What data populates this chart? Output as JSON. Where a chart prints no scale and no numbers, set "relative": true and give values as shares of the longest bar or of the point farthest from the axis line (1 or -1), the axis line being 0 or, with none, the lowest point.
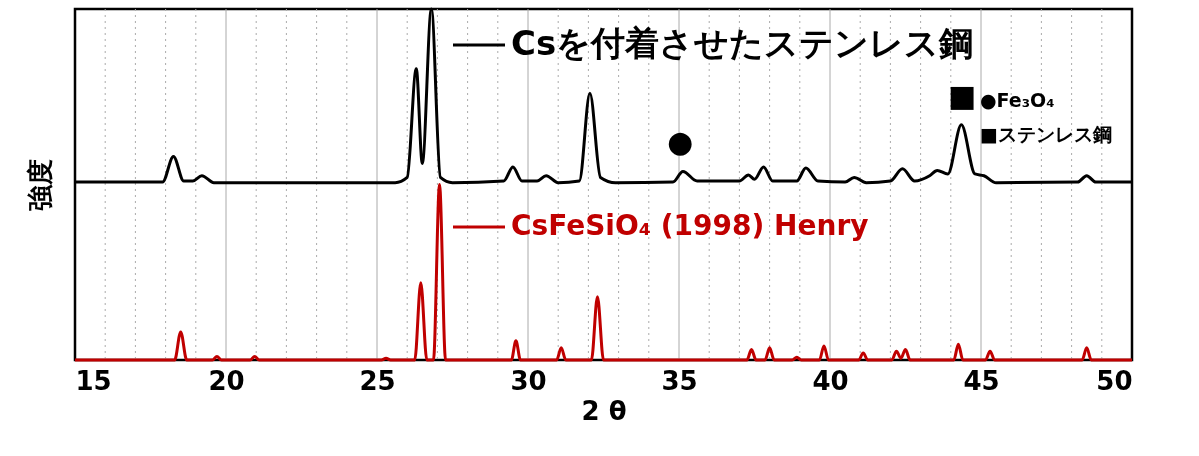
{
  "chart_data": {
    "type": "line",
    "relative": true,
    "xlabel": "2 θ",
    "ylabel": "強度",
    "xlim": [
      15,
      50
    ],
    "xticks": [
      15,
      {
        "value": 16,
        "label": null
      },
      {
        "value": 17,
        "label": null
      },
      {
        "value": 18,
        "label": null
      },
      {
        "value": 19,
        "label": null
      },
      20,
      {
        "value": 21,
        "label": null
      },
      {
        "value": 22,
        "label": null
      },
      {
        "value": 23,
        "label": null
      },
      {
        "value": 24,
        "label": null
      },
      25,
      {
        "value": 26,
        "label": null
      },
      {
        "value": 27,
        "label": null
      },
      {
        "value": 28,
        "label": null
      },
      {
        "value": 29,
        "label": null
      },
      30,
      {
        "value": 31,
        "label": null
      },
      {
        "value": 32,
        "label": null
      },
      {
        "value": 33,
        "label": null
      },
      {
        "value": 34,
        "label": null
      },
      35,
      {
        "value": 36,
        "label": null
      },
      {
        "value": 37,
        "label": null
      },
      {
        "value": 38,
        "label": null
      },
      {
        "value": 39,
        "label": null
      },
      40,
      {
        "value": 41,
        "label": null
      },
      {
        "value": 42,
        "label": null
      },
      {
        "value": 43,
        "label": null
      },
      {
        "value": 44,
        "label": null
      },
      45,
      {
        "value": 46,
        "label": null
      },
      {
        "value": 47,
        "label": null
      },
      {
        "value": 48,
        "label": null
      },
      {
        "value": 49,
        "label": null
      },
      50
    ],
    "grid": "x",
    "line_style": "solid",
    "marker": "none",
    "series": [
      {
        "name": "Csを付着させたステンレス鋼",
        "color": "#000000",
        "x": [
          15,
          17.9,
          18.26,
          18.6,
          18.9,
          19.2,
          19.6,
          25.6,
          26.0,
          26.3,
          26.5,
          26.8,
          27.1,
          27.5,
          29.2,
          29.5,
          29.8,
          30.3,
          30.6,
          31.0,
          31.7,
          32.05,
          32.4,
          32.9,
          34.8,
          35.13,
          35.6,
          37.0,
          37.3,
          37.5,
          37.8,
          38.1,
          38.9,
          39.2,
          39.6,
          40.5,
          40.8,
          41.2,
          42.0,
          42.4,
          42.8,
          43.3,
          43.55,
          43.9,
          44.35,
          44.8,
          45.1,
          45.5,
          48.2,
          48.5,
          48.8,
          50
        ],
        "values": [
          0.507,
          0.507,
          0.58,
          0.51,
          0.51,
          0.525,
          0.505,
          0.505,
          0.52,
          0.83,
          0.56,
          1.0,
          0.52,
          0.505,
          0.51,
          0.55,
          0.51,
          0.51,
          0.525,
          0.505,
          0.51,
          0.76,
          0.52,
          0.505,
          0.507,
          0.537,
          0.51,
          0.51,
          0.527,
          0.515,
          0.55,
          0.51,
          0.51,
          0.547,
          0.51,
          0.507,
          0.52,
          0.505,
          0.51,
          0.545,
          0.51,
          0.525,
          0.54,
          0.53,
          0.67,
          0.53,
          0.525,
          0.505,
          0.507,
          0.525,
          0.507,
          0.507
        ]
      },
      {
        "name": "CsFeSiO₄ (1998) Henry",
        "color": "#c00000",
        "x": [
          15,
          18.3,
          18.5,
          18.7,
          19.55,
          19.7,
          19.85,
          20.8,
          20.95,
          21.1,
          25.15,
          25.3,
          25.45,
          26.25,
          26.45,
          26.65,
          26.87,
          27.07,
          27.27,
          29.45,
          29.6,
          29.75,
          30.95,
          31.1,
          31.25,
          32.1,
          32.3,
          32.5,
          37.25,
          37.4,
          37.55,
          37.85,
          38.0,
          38.15,
          38.75,
          38.9,
          39.05,
          39.65,
          39.8,
          39.95,
          40.95,
          41.1,
          41.25,
          42.05,
          42.2,
          42.35,
          42.5,
          42.65,
          44.1,
          44.25,
          44.4,
          45.15,
          45.3,
          45.45,
          48.35,
          48.5,
          48.65,
          50
        ],
        "values": [
          0,
          0,
          0.08,
          0,
          0,
          0.01,
          0,
          0,
          0.01,
          0,
          0,
          0.005,
          0,
          0,
          0.22,
          0,
          0,
          0.5,
          0,
          0,
          0.055,
          0,
          0,
          0.035,
          0,
          0,
          0.18,
          0,
          0,
          0.03,
          0,
          0,
          0.035,
          0,
          0,
          0.008,
          0,
          0,
          0.04,
          0,
          0,
          0.02,
          0,
          0,
          0.025,
          0.005,
          0.03,
          0,
          0,
          0.045,
          0,
          0,
          0.025,
          0,
          0,
          0.035,
          0,
          0
        ]
      }
    ],
    "legend": "top",
    "annotations": [
      "●",
      "■",
      "●Fe₃O₄",
      "■ステンレス鋼"
    ]
  }
}
